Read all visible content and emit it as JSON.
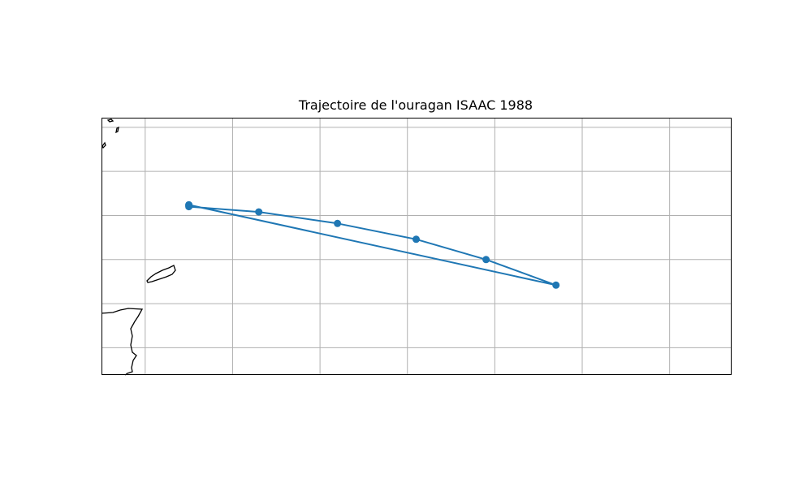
{
  "title": "Trajectoire de l'ouragan ISAAC 1988",
  "colors": {
    "track": "#1f77b4",
    "grid": "#b0b0b0",
    "coastline": "#000000",
    "frame": "#000000",
    "background": "#ffffff"
  },
  "chart_data": {
    "type": "map-track",
    "title": "Trajectoire de l'ouragan ISAAC 1988",
    "extent": {
      "lon": [
        -63.5,
        -56.3
      ],
      "lat": [
        10.7,
        13.6
      ]
    },
    "gridlines": {
      "lon": [
        -63,
        -62,
        -61,
        -60,
        -59,
        -58,
        -57
      ],
      "lat": [
        11,
        11.5,
        12,
        12.5,
        13,
        13.5
      ]
    },
    "grid": true,
    "track": {
      "lon": [
        -62.5,
        -62.5,
        -58.3,
        -59.1,
        -59.9,
        -60.8,
        -61.7,
        -62.5
      ],
      "lat": [
        12.62,
        12.62,
        11.71,
        12.0,
        12.23,
        12.41,
        12.54,
        12.6
      ]
    }
  }
}
